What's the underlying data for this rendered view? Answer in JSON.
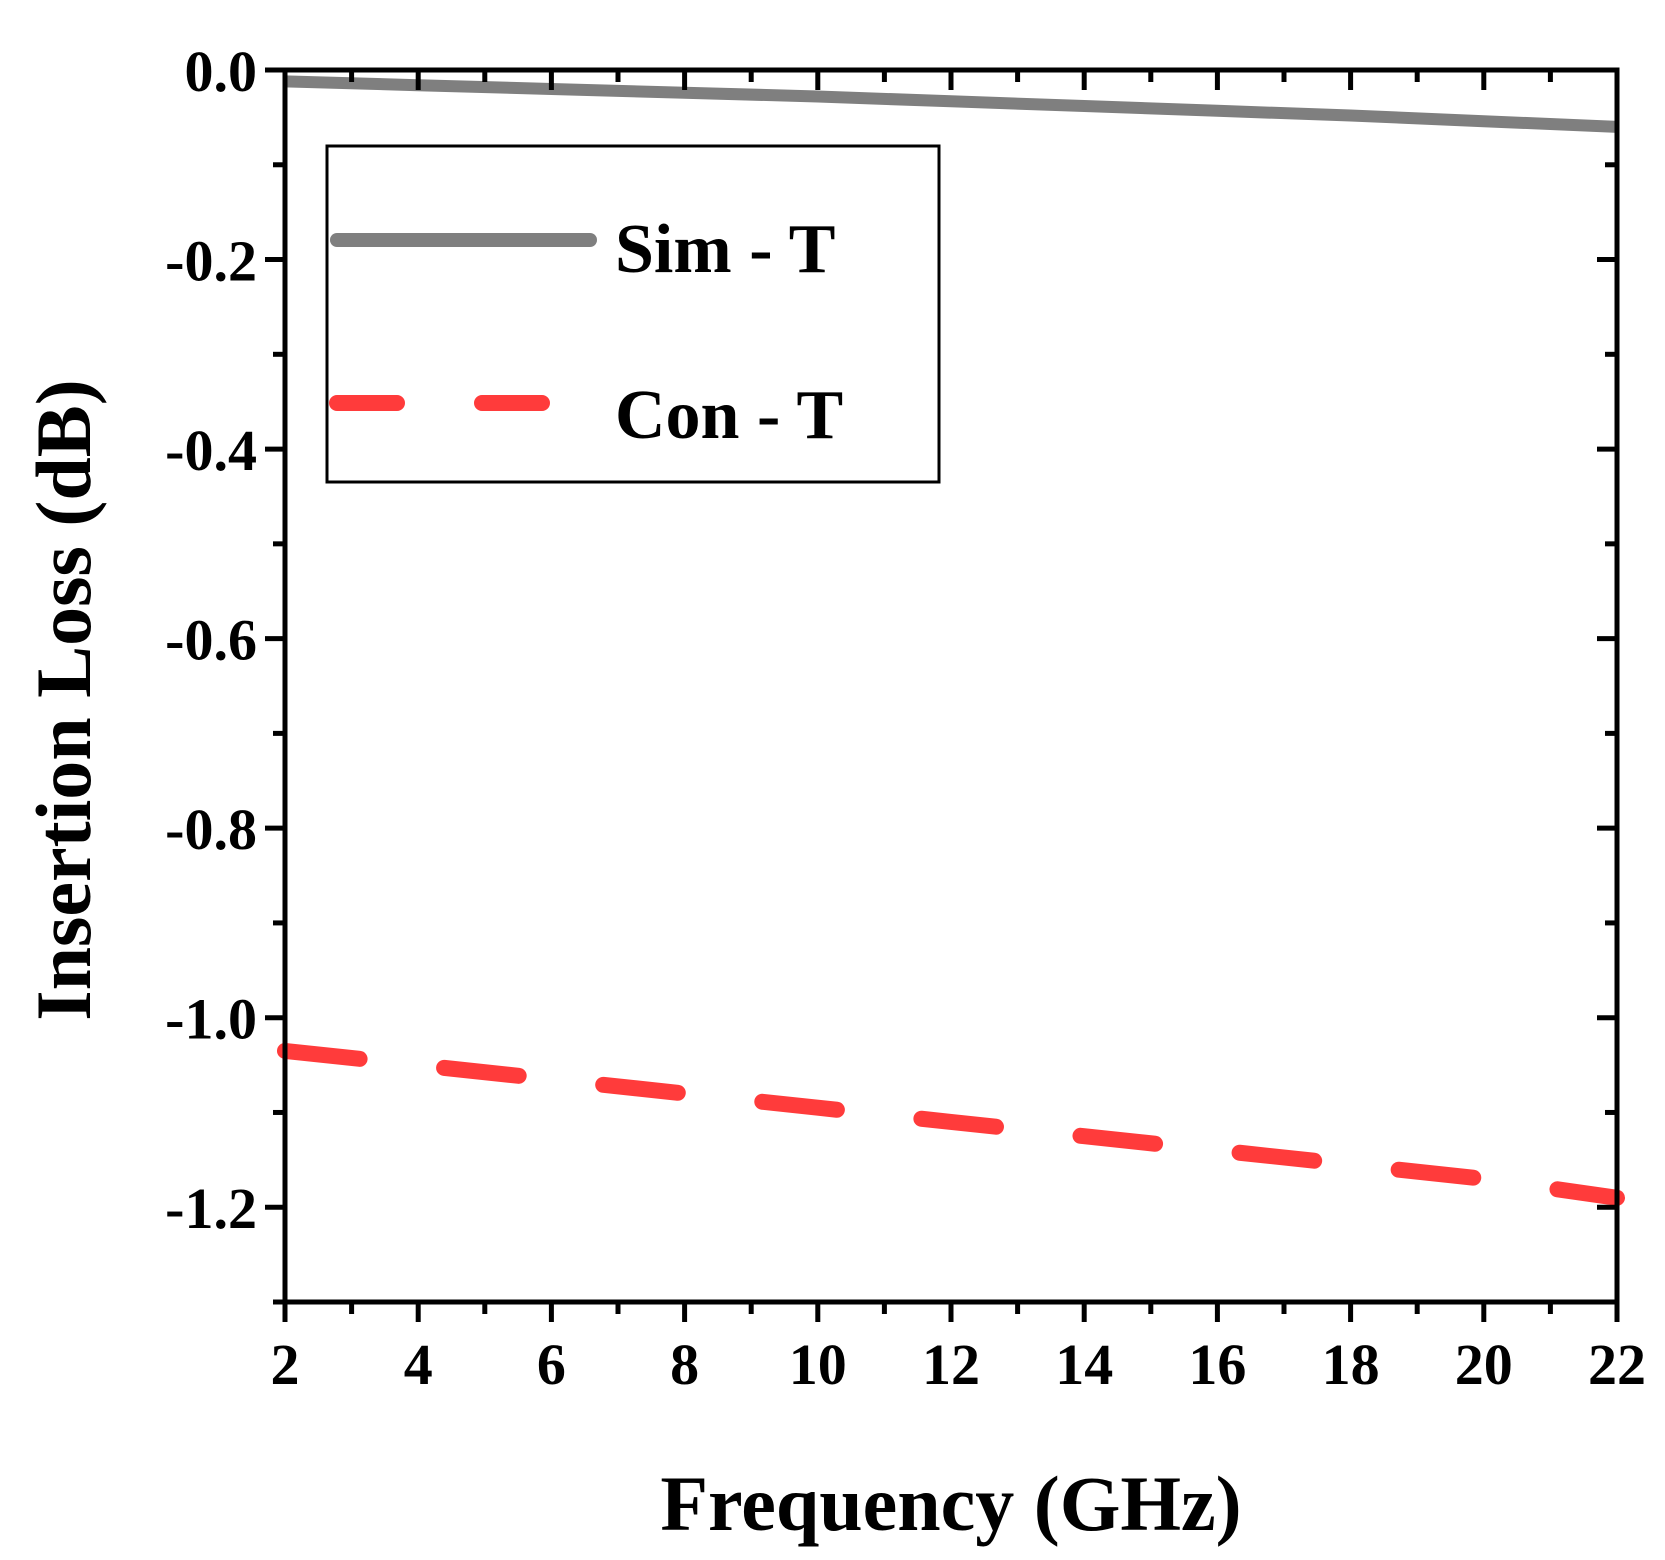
{
  "chart_data": {
    "type": "line",
    "title": "",
    "xlabel": "Frequency (GHz)",
    "ylabel": "Insertion Loss (dB)",
    "xlim": [
      2,
      22
    ],
    "ylim": [
      -1.3,
      0.0
    ],
    "xticks": [
      2,
      4,
      6,
      8,
      10,
      12,
      14,
      16,
      18,
      20,
      22
    ],
    "xtick_labels": [
      "2",
      "4",
      "6",
      "8",
      "10",
      "12",
      "14",
      "16",
      "18",
      "20",
      "22"
    ],
    "yticks": [
      0.0,
      -0.2,
      -0.4,
      -0.6,
      -0.8,
      -1.0,
      -1.2
    ],
    "ytick_labels": [
      "0.0",
      "-0.2",
      "-0.4",
      "-0.6",
      "-0.8",
      "-1.0",
      "-1.2"
    ],
    "grid": false,
    "legend_position": "top-left",
    "series": [
      {
        "name": "Sim - T",
        "color": "#7f7f7f",
        "style": "solid",
        "x": [
          2,
          4,
          6,
          8,
          10,
          12,
          14,
          16,
          18,
          20,
          22
        ],
        "y": [
          -0.012,
          -0.016,
          -0.02,
          -0.024,
          -0.028,
          -0.033,
          -0.038,
          -0.043,
          -0.048,
          -0.054,
          -0.06
        ]
      },
      {
        "name": "Con - T",
        "color": "#ff3b3b",
        "style": "dashed",
        "x": [
          2,
          4,
          6,
          8,
          10,
          12,
          14,
          16,
          18,
          20,
          22
        ],
        "y": [
          -1.035,
          -1.05,
          -1.065,
          -1.08,
          -1.095,
          -1.11,
          -1.125,
          -1.14,
          -1.155,
          -1.17,
          -1.19
        ]
      }
    ]
  }
}
